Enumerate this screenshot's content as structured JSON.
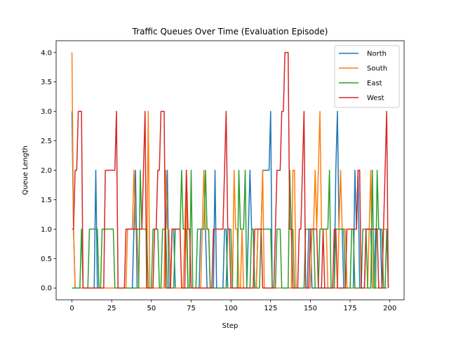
{
  "chart_data": {
    "type": "line",
    "title": "Traffic Queues Over Time (Evaluation Episode)",
    "xlabel": "Step",
    "ylabel": "Queue Length",
    "xlim": [
      -9.95,
      208.95
    ],
    "ylim": [
      -0.2,
      4.2
    ],
    "xticks": [
      0,
      25,
      50,
      75,
      100,
      125,
      150,
      175,
      200
    ],
    "yticks": [
      0.0,
      0.5,
      1.0,
      1.5,
      2.0,
      2.5,
      3.0,
      3.5,
      4.0
    ],
    "ytick_labels": [
      "0.0",
      "0.5",
      "1.0",
      "1.5",
      "2.0",
      "2.5",
      "3.0",
      "3.5",
      "4.0"
    ],
    "grid": false,
    "legend_position": "top-right",
    "series": [
      {
        "name": "North",
        "color": "#1f77b4",
        "points": [
          [
            0,
            3
          ],
          [
            1,
            1
          ],
          [
            2,
            0
          ],
          [
            14,
            0
          ],
          [
            15,
            2
          ],
          [
            16,
            0
          ],
          [
            38,
            0
          ],
          [
            39,
            1
          ],
          [
            40,
            2
          ],
          [
            41,
            0
          ],
          [
            58,
            0
          ],
          [
            59,
            1
          ],
          [
            60,
            2
          ],
          [
            61,
            0
          ],
          [
            62,
            0
          ],
          [
            63,
            1
          ],
          [
            64,
            1
          ],
          [
            65,
            0
          ],
          [
            80,
            0
          ],
          [
            81,
            1
          ],
          [
            84,
            1
          ],
          [
            85,
            0
          ],
          [
            89,
            0
          ],
          [
            90,
            2
          ],
          [
            91,
            0
          ],
          [
            95,
            0
          ],
          [
            96,
            1
          ],
          [
            97,
            1
          ],
          [
            98,
            0
          ],
          [
            110,
            0
          ],
          [
            111,
            1
          ],
          [
            112,
            2
          ],
          [
            113,
            1
          ],
          [
            114,
            1
          ],
          [
            115,
            0
          ],
          [
            116,
            0
          ],
          [
            117,
            1
          ],
          [
            119,
            1
          ],
          [
            120,
            2
          ],
          [
            124,
            2
          ],
          [
            125,
            3
          ],
          [
            126,
            0
          ],
          [
            148,
            0
          ],
          [
            149,
            1
          ],
          [
            150,
            1
          ],
          [
            151,
            0
          ],
          [
            165,
            0
          ],
          [
            166,
            2
          ],
          [
            167,
            3
          ],
          [
            168,
            1
          ],
          [
            170,
            1
          ],
          [
            171,
            0
          ],
          [
            177,
            0
          ],
          [
            178,
            2
          ],
          [
            179,
            1
          ],
          [
            180,
            2
          ],
          [
            181,
            0
          ],
          [
            184,
            0
          ],
          [
            185,
            1
          ],
          [
            188,
            1
          ],
          [
            189,
            0
          ],
          [
            190,
            0
          ],
          [
            191,
            1
          ],
          [
            194,
            1
          ],
          [
            195,
            0
          ],
          [
            198,
            0
          ]
        ]
      },
      {
        "name": "South",
        "color": "#ff7f0e",
        "points": [
          [
            0,
            4
          ],
          [
            1,
            1
          ],
          [
            2,
            0
          ],
          [
            34,
            0
          ],
          [
            35,
            1
          ],
          [
            38,
            1
          ],
          [
            39,
            2
          ],
          [
            40,
            1
          ],
          [
            41,
            1
          ],
          [
            42,
            0
          ],
          [
            47,
            0
          ],
          [
            48,
            3
          ],
          [
            49,
            0
          ],
          [
            58,
            0
          ],
          [
            59,
            2
          ],
          [
            60,
            1
          ],
          [
            61,
            1
          ],
          [
            62,
            0
          ],
          [
            70,
            0
          ],
          [
            71,
            1
          ],
          [
            72,
            2
          ],
          [
            73,
            0
          ],
          [
            81,
            0
          ],
          [
            82,
            1
          ],
          [
            83,
            2
          ],
          [
            84,
            1
          ],
          [
            86,
            1
          ],
          [
            87,
            0
          ],
          [
            101,
            0
          ],
          [
            102,
            2
          ],
          [
            103,
            1
          ],
          [
            104,
            1
          ],
          [
            105,
            0
          ],
          [
            106,
            0
          ],
          [
            107,
            1
          ],
          [
            108,
            0
          ],
          [
            116,
            0
          ],
          [
            117,
            1
          ],
          [
            119,
            1
          ],
          [
            120,
            2
          ],
          [
            121,
            0
          ],
          [
            138,
            0
          ],
          [
            139,
            2
          ],
          [
            140,
            2
          ],
          [
            141,
            0
          ],
          [
            150,
            0
          ],
          [
            151,
            1
          ],
          [
            152,
            1
          ],
          [
            153,
            2
          ],
          [
            154,
            1
          ],
          [
            155,
            2
          ],
          [
            156,
            3
          ],
          [
            157,
            1
          ],
          [
            160,
            1
          ],
          [
            161,
            0
          ],
          [
            167,
            0
          ],
          [
            168,
            1
          ],
          [
            169,
            2
          ],
          [
            170,
            1
          ],
          [
            172,
            1
          ],
          [
            173,
            0
          ],
          [
            186,
            0
          ],
          [
            187,
            1
          ],
          [
            188,
            2
          ],
          [
            189,
            0
          ],
          [
            195,
            0
          ],
          [
            196,
            1
          ],
          [
            198,
            1
          ]
        ]
      },
      {
        "name": "East",
        "color": "#2ca02c",
        "points": [
          [
            0,
            0
          ],
          [
            5,
            0
          ],
          [
            6,
            1
          ],
          [
            7,
            0
          ],
          [
            10,
            0
          ],
          [
            11,
            1
          ],
          [
            16,
            1
          ],
          [
            17,
            0
          ],
          [
            18,
            0
          ],
          [
            19,
            1
          ],
          [
            26,
            1
          ],
          [
            27,
            0
          ],
          [
            42,
            0
          ],
          [
            43,
            2
          ],
          [
            44,
            1
          ],
          [
            47,
            1
          ],
          [
            48,
            0
          ],
          [
            50,
            0
          ],
          [
            51,
            1
          ],
          [
            54,
            1
          ],
          [
            55,
            0
          ],
          [
            56,
            0
          ],
          [
            57,
            1
          ],
          [
            59,
            1
          ],
          [
            60,
            0
          ],
          [
            64,
            0
          ],
          [
            65,
            1
          ],
          [
            68,
            1
          ],
          [
            69,
            2
          ],
          [
            70,
            1
          ],
          [
            72,
            1
          ],
          [
            73,
            0
          ],
          [
            74,
            0
          ],
          [
            75,
            2
          ],
          [
            76,
            0
          ],
          [
            78,
            0
          ],
          [
            79,
            1
          ],
          [
            83,
            1
          ],
          [
            84,
            2
          ],
          [
            85,
            1
          ],
          [
            86,
            1
          ],
          [
            87,
            0
          ],
          [
            97,
            0
          ],
          [
            98,
            1
          ],
          [
            100,
            1
          ],
          [
            101,
            0
          ],
          [
            104,
            0
          ],
          [
            105,
            2
          ],
          [
            106,
            1
          ],
          [
            108,
            1
          ],
          [
            109,
            2
          ],
          [
            110,
            0
          ],
          [
            112,
            0
          ],
          [
            113,
            1
          ],
          [
            114,
            1
          ],
          [
            115,
            0
          ],
          [
            118,
            0
          ],
          [
            119,
            1
          ],
          [
            125,
            1
          ],
          [
            126,
            0
          ],
          [
            128,
            0
          ],
          [
            129,
            1
          ],
          [
            131,
            1
          ],
          [
            132,
            0
          ],
          [
            136,
            0
          ],
          [
            137,
            2
          ],
          [
            138,
            1
          ],
          [
            139,
            1
          ],
          [
            140,
            0
          ],
          [
            146,
            0
          ],
          [
            147,
            1
          ],
          [
            152,
            1
          ],
          [
            153,
            0
          ],
          [
            155,
            0
          ],
          [
            156,
            1
          ],
          [
            161,
            1
          ],
          [
            162,
            2
          ],
          [
            163,
            0
          ],
          [
            165,
            0
          ],
          [
            166,
            1
          ],
          [
            171,
            1
          ],
          [
            172,
            0
          ],
          [
            175,
            0
          ],
          [
            176,
            1
          ],
          [
            177,
            1
          ],
          [
            178,
            0
          ],
          [
            182,
            0
          ],
          [
            183,
            1
          ],
          [
            185,
            1
          ],
          [
            186,
            0
          ],
          [
            188,
            0
          ],
          [
            189,
            2
          ],
          [
            190,
            0
          ],
          [
            191,
            0
          ],
          [
            192,
            2
          ],
          [
            193,
            1
          ],
          [
            195,
            1
          ],
          [
            196,
            0
          ],
          [
            197,
            0
          ],
          [
            198,
            1
          ],
          [
            199,
            0
          ]
        ]
      },
      {
        "name": "West",
        "color": "#d62728",
        "points": [
          [
            0,
            1
          ],
          [
            1,
            1
          ],
          [
            2,
            2
          ],
          [
            3,
            2
          ],
          [
            4,
            3
          ],
          [
            6,
            3
          ],
          [
            7,
            0
          ],
          [
            20,
            0
          ],
          [
            21,
            2
          ],
          [
            27,
            2
          ],
          [
            28,
            3
          ],
          [
            29,
            0
          ],
          [
            33,
            0
          ],
          [
            34,
            1
          ],
          [
            44,
            1
          ],
          [
            45,
            2
          ],
          [
            46,
            3
          ],
          [
            47,
            0
          ],
          [
            51,
            0
          ],
          [
            52,
            1
          ],
          [
            53,
            1
          ],
          [
            54,
            2
          ],
          [
            55,
            2
          ],
          [
            56,
            3
          ],
          [
            58,
            3
          ],
          [
            59,
            0
          ],
          [
            62,
            0
          ],
          [
            63,
            1
          ],
          [
            68,
            1
          ],
          [
            69,
            0
          ],
          [
            71,
            0
          ],
          [
            72,
            2
          ],
          [
            73,
            1
          ],
          [
            74,
            1
          ],
          [
            75,
            0
          ],
          [
            88,
            0
          ],
          [
            89,
            1
          ],
          [
            95,
            1
          ],
          [
            96,
            2
          ],
          [
            97,
            3
          ],
          [
            98,
            1
          ],
          [
            99,
            1
          ],
          [
            100,
            0
          ],
          [
            114,
            0
          ],
          [
            115,
            1
          ],
          [
            119,
            1
          ],
          [
            120,
            0
          ],
          [
            127,
            0
          ],
          [
            128,
            1
          ],
          [
            129,
            2
          ],
          [
            131,
            2
          ],
          [
            132,
            3
          ],
          [
            133,
            3
          ],
          [
            134,
            4
          ],
          [
            136,
            4
          ],
          [
            137,
            1
          ],
          [
            138,
            1
          ],
          [
            139,
            0
          ],
          [
            142,
            0
          ],
          [
            143,
            1
          ],
          [
            144,
            1
          ],
          [
            145,
            2
          ],
          [
            146,
            3
          ],
          [
            147,
            0
          ],
          [
            149,
            0
          ],
          [
            150,
            1
          ],
          [
            154,
            1
          ],
          [
            155,
            0
          ],
          [
            157,
            0
          ],
          [
            158,
            1
          ],
          [
            159,
            0
          ],
          [
            164,
            0
          ],
          [
            165,
            1
          ],
          [
            166,
            1
          ],
          [
            167,
            0
          ],
          [
            172,
            0
          ],
          [
            173,
            1
          ],
          [
            179,
            1
          ],
          [
            180,
            2
          ],
          [
            181,
            2
          ],
          [
            182,
            0
          ],
          [
            184,
            0
          ],
          [
            185,
            1
          ],
          [
            192,
            1
          ],
          [
            193,
            0
          ],
          [
            195,
            0
          ],
          [
            196,
            1
          ],
          [
            197,
            2
          ],
          [
            198,
            3
          ],
          [
            199,
            0
          ]
        ]
      }
    ]
  }
}
